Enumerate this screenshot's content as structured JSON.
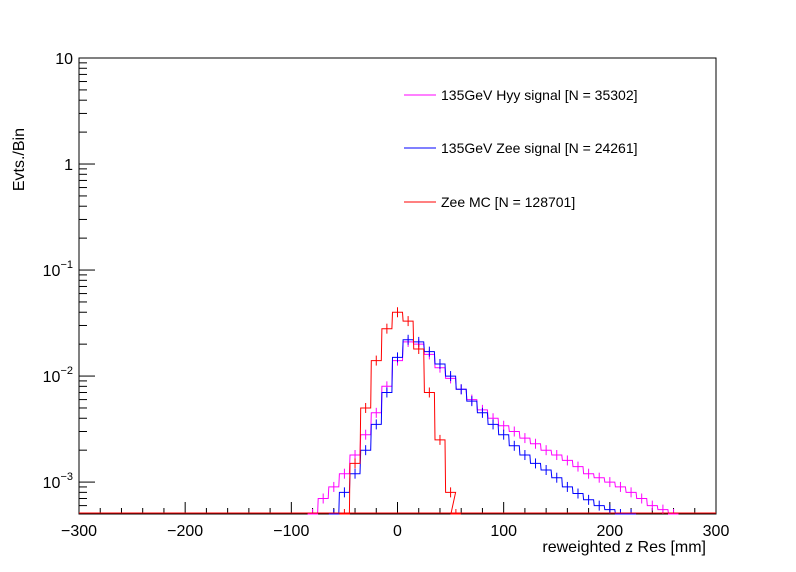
{
  "chart_data": {
    "type": "line",
    "xlabel": "reweighted z Res [mm]",
    "ylabel": "Evts./Bin",
    "xlim": [
      -300,
      300
    ],
    "ylim": [
      0.0005,
      10
    ],
    "y_scale": "log",
    "grid": false,
    "legend_placement": "top-right",
    "x_ticks": [
      {
        "value": -300,
        "label": "−300"
      },
      {
        "value": -200,
        "label": "−200"
      },
      {
        "value": -100,
        "label": "−100"
      },
      {
        "value": 0,
        "label": "0"
      },
      {
        "value": 100,
        "label": "100"
      },
      {
        "value": 200,
        "label": "200"
      },
      {
        "value": 300,
        "label": "300"
      }
    ],
    "y_ticks": [
      {
        "value": 10,
        "base": "10",
        "exp": ""
      },
      {
        "value": 1,
        "base": "1",
        "exp": ""
      },
      {
        "value": 0.1,
        "base": "10",
        "exp": "−1"
      },
      {
        "value": 0.01,
        "base": "10",
        "exp": "−2"
      },
      {
        "value": 0.001,
        "base": "10",
        "exp": "−3"
      }
    ],
    "series": [
      {
        "name": "135GeV Hyy signal [N = 35302]",
        "color": "#ff00ff",
        "x": [
          -80,
          -70,
          -60,
          -50,
          -40,
          -30,
          -20,
          -10,
          0,
          10,
          20,
          30,
          40,
          50,
          60,
          70,
          80,
          90,
          100,
          110,
          120,
          130,
          140,
          150,
          160,
          170,
          180,
          190,
          200,
          210,
          220,
          230,
          240,
          250,
          260
        ],
        "y": [
          0.0005,
          0.0007,
          0.0009,
          0.0012,
          0.0018,
          0.0028,
          0.0045,
          0.008,
          0.014,
          0.021,
          0.02,
          0.016,
          0.012,
          0.0095,
          0.0075,
          0.006,
          0.0048,
          0.004,
          0.0034,
          0.003,
          0.0026,
          0.0023,
          0.002,
          0.0018,
          0.0016,
          0.0014,
          0.0012,
          0.0011,
          0.001,
          0.0009,
          0.0008,
          0.0007,
          0.0006,
          0.00055,
          0.0005
        ]
      },
      {
        "name": "135GeV Zee signal [N = 24261]",
        "color": "#0000ff",
        "x": [
          -60,
          -50,
          -40,
          -30,
          -20,
          -10,
          0,
          10,
          20,
          30,
          40,
          50,
          60,
          70,
          80,
          90,
          100,
          110,
          120,
          130,
          140,
          150,
          160,
          170,
          180,
          190,
          200,
          210,
          220
        ],
        "y": [
          0.0005,
          0.0008,
          0.0012,
          0.002,
          0.0035,
          0.007,
          0.015,
          0.022,
          0.021,
          0.017,
          0.013,
          0.01,
          0.0075,
          0.0058,
          0.0045,
          0.0035,
          0.0028,
          0.0022,
          0.0018,
          0.0015,
          0.0013,
          0.0011,
          0.0009,
          0.00078,
          0.00068,
          0.0006,
          0.00055,
          0.0005,
          0.0005
        ]
      },
      {
        "name": "Zee MC [N = 128701]",
        "color": "#ff0000",
        "x": [
          -50,
          -40,
          -30,
          -20,
          -10,
          0,
          10,
          20,
          30,
          40,
          50,
          55
        ],
        "y": [
          0.0005,
          0.0015,
          0.005,
          0.014,
          0.028,
          0.04,
          0.033,
          0.018,
          0.007,
          0.0025,
          0.0008,
          0.0005
        ]
      }
    ]
  }
}
